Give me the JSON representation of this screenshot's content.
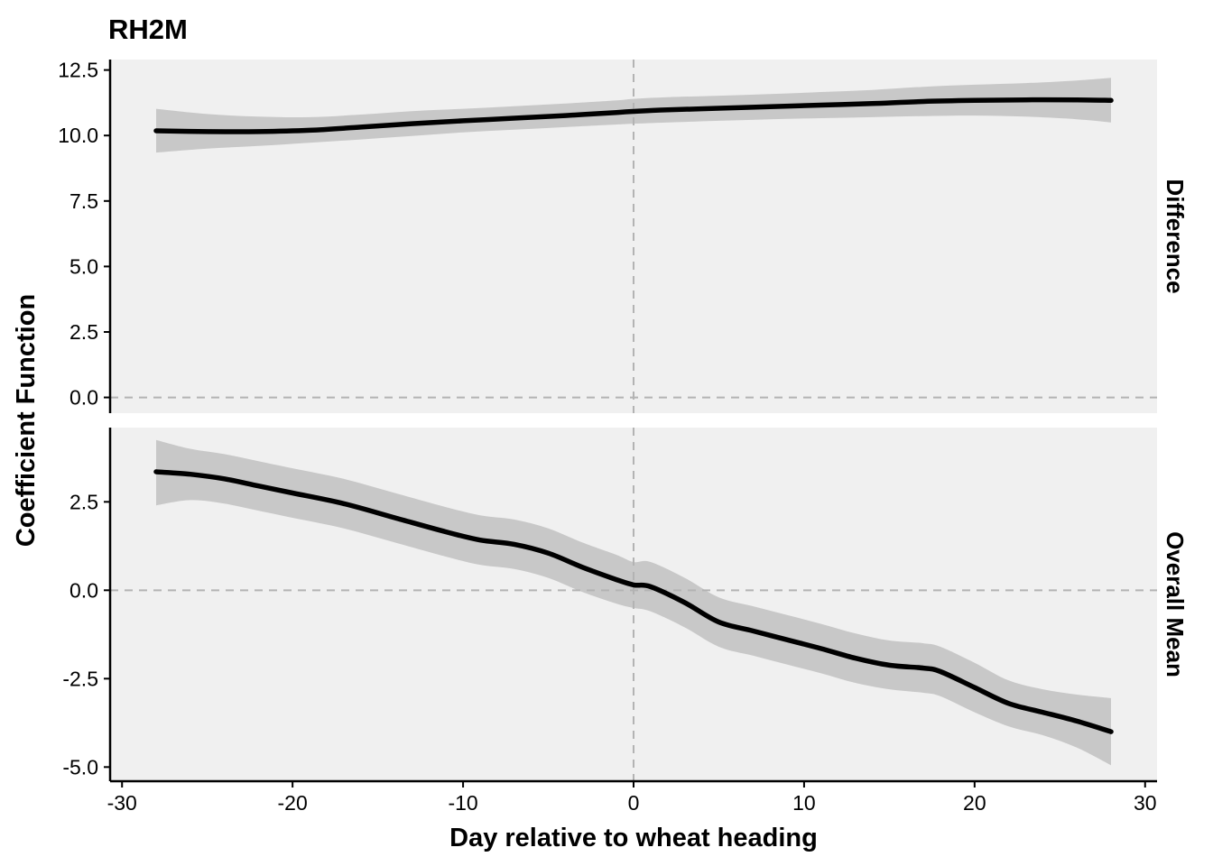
{
  "chart_data": {
    "type": "line",
    "title": "RH2M",
    "xlabel": "Day relative to wheat heading",
    "ylabel": "Coefficient Function",
    "xlim": [
      -30.7,
      30.7
    ],
    "x_ticks": [
      -30,
      -20,
      -10,
      0,
      10,
      20,
      30
    ],
    "x_tick_labels": [
      "-30",
      "-20",
      "-10",
      "0",
      "10",
      "20",
      "30"
    ],
    "reference_lines": {
      "vertical_x": 0,
      "horizontal_y": 0,
      "style": "dashed grey"
    },
    "colors": {
      "panel_background": "#f0f0f0",
      "ribbon": "#c8c8c8",
      "line": "#000000",
      "reference": "#b3b3b3"
    },
    "facets": [
      {
        "label": "Difference",
        "ylim": [
          -0.6,
          12.9
        ],
        "y_ticks": [
          0,
          2.5,
          5,
          7.5,
          10,
          12.5
        ],
        "y_tick_labels": [
          "0.0",
          "2.5",
          "5.0",
          "7.5",
          "10.0",
          "12.5"
        ],
        "series": [
          {
            "x": [
              -28,
              -25,
              -22,
              -19,
              -16,
              -13,
              -10,
              -7,
              -4,
              -1,
              0,
              2,
              5,
              8,
              11,
              14,
              17,
              20,
              23,
              26,
              28
            ],
            "y": [
              10.18,
              10.15,
              10.15,
              10.2,
              10.32,
              10.45,
              10.56,
              10.66,
              10.76,
              10.88,
              10.92,
              10.98,
              11.04,
              11.1,
              11.16,
              11.22,
              11.3,
              11.34,
              11.36,
              11.36,
              11.34
            ],
            "lower": [
              9.35,
              9.5,
              9.6,
              9.72,
              9.85,
              9.98,
              10.12,
              10.22,
              10.32,
              10.42,
              10.45,
              10.5,
              10.56,
              10.62,
              10.66,
              10.7,
              10.74,
              10.76,
              10.72,
              10.62,
              10.5
            ],
            "upper": [
              11.02,
              10.82,
              10.72,
              10.7,
              10.8,
              10.93,
              11.02,
              11.12,
              11.22,
              11.34,
              11.4,
              11.46,
              11.52,
              11.58,
              11.66,
              11.74,
              11.86,
              11.94,
              12.0,
              12.1,
              12.2
            ]
          }
        ]
      },
      {
        "label": "Overall Mean",
        "ylim": [
          -5.4,
          4.6
        ],
        "y_ticks": [
          -5,
          -2.5,
          0,
          2.5
        ],
        "y_tick_labels": [
          "-5.0",
          "-2.5",
          "0.0",
          "2.5"
        ],
        "series": [
          {
            "x": [
              -28,
              -26,
              -24,
              -22,
              -20,
              -17,
              -14,
              -11,
              -9,
              -7,
              -5,
              -3,
              -1,
              0,
              1,
              3,
              5,
              7,
              9,
              11,
              13,
              15,
              17,
              18,
              20,
              22,
              24,
              26,
              28
            ],
            "y": [
              3.35,
              3.28,
              3.15,
              2.95,
              2.75,
              2.45,
              2.05,
              1.65,
              1.42,
              1.3,
              1.05,
              0.65,
              0.3,
              0.15,
              0.1,
              -0.35,
              -0.9,
              -1.15,
              -1.4,
              -1.65,
              -1.92,
              -2.12,
              -2.2,
              -2.3,
              -2.75,
              -3.2,
              -3.45,
              -3.7,
              -4.0
            ],
            "lower": [
              2.4,
              2.55,
              2.45,
              2.25,
              2.05,
              1.75,
              1.35,
              0.95,
              0.72,
              0.6,
              0.35,
              -0.05,
              -0.38,
              -0.5,
              -0.6,
              -1.05,
              -1.6,
              -1.85,
              -2.1,
              -2.35,
              -2.62,
              -2.8,
              -2.9,
              -3.0,
              -3.45,
              -3.85,
              -4.1,
              -4.45,
              -4.95
            ],
            "upper": [
              4.25,
              4.0,
              3.85,
              3.65,
              3.45,
              3.15,
              2.75,
              2.35,
              2.12,
              2.0,
              1.75,
              1.35,
              1.0,
              0.8,
              0.8,
              0.35,
              -0.2,
              -0.45,
              -0.7,
              -0.95,
              -1.22,
              -1.42,
              -1.5,
              -1.6,
              -2.05,
              -2.55,
              -2.8,
              -2.95,
              -3.05
            ]
          }
        ]
      }
    ]
  }
}
